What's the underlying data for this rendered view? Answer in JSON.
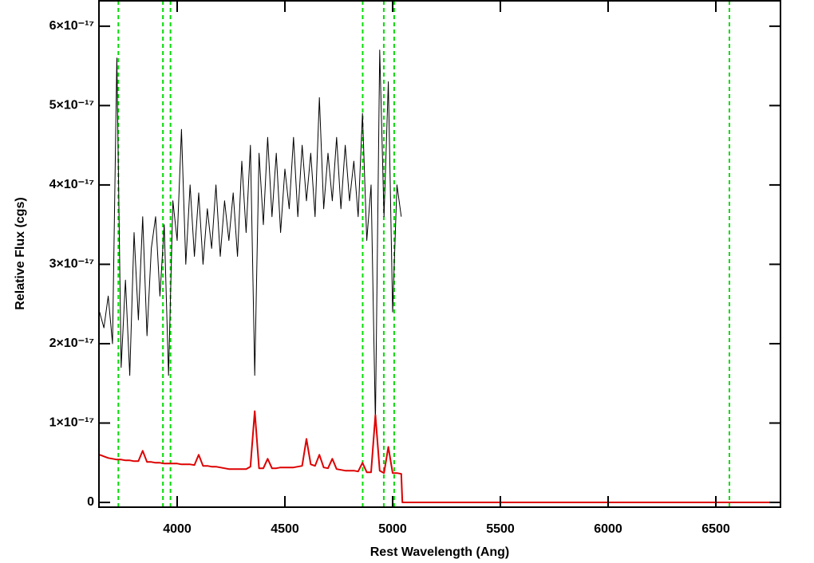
{
  "chart_data": {
    "type": "line",
    "x_label": "Rest Wavelength (Ang)",
    "y_label": "Relative Flux (cgs)",
    "xlim": [
      3637,
      6800
    ],
    "ylim": [
      -6e-19,
      6.32e-17
    ],
    "xticks": [
      4000,
      4500,
      5000,
      5500,
      6000,
      6500
    ],
    "yticks": [
      0,
      {
        "value": 1e-17,
        "label": "1×10⁻¹⁷"
      },
      {
        "value": 2e-17,
        "label": "2×10⁻¹⁷"
      },
      {
        "value": 3e-17,
        "label": "3×10⁻¹⁷"
      },
      {
        "value": 4e-17,
        "label": "4×10⁻¹⁷"
      },
      {
        "value": 5e-17,
        "label": "5×10⁻¹⁷"
      },
      {
        "value": 6e-17,
        "label": "6×10⁻¹⁷"
      }
    ],
    "vlines": [
      3727,
      3934,
      3969,
      4861,
      4959,
      5007,
      6563
    ],
    "vline_color": "#00dd00",
    "x": [
      3640,
      3660,
      3680,
      3700,
      3720,
      3740,
      3760,
      3780,
      3800,
      3820,
      3840,
      3860,
      3880,
      3900,
      3920,
      3940,
      3960,
      3980,
      4000,
      4020,
      4040,
      4060,
      4080,
      4100,
      4120,
      4140,
      4160,
      4180,
      4200,
      4220,
      4240,
      4260,
      4280,
      4300,
      4320,
      4340,
      4360,
      4380,
      4400,
      4420,
      4440,
      4460,
      4480,
      4500,
      4520,
      4540,
      4560,
      4580,
      4600,
      4620,
      4640,
      4660,
      4680,
      4700,
      4720,
      4740,
      4760,
      4780,
      4800,
      4820,
      4840,
      4860,
      4880,
      4900,
      4920,
      4940,
      4960,
      4980,
      5000,
      5020,
      5040,
      5045,
      6800
    ],
    "series": [
      {
        "color": "#000000",
        "values": [
          2.4e-17,
          2.2e-17,
          2.6e-17,
          2e-17,
          5.6e-17,
          1.7e-17,
          2.8e-17,
          1.6e-17,
          3.4e-17,
          2.3e-17,
          3.6e-17,
          2.1e-17,
          3.2e-17,
          3.6e-17,
          2.6e-17,
          3.5e-17,
          1.6e-17,
          3.8e-17,
          3.3e-17,
          4.7e-17,
          3e-17,
          4e-17,
          3.1e-17,
          3.9e-17,
          3e-17,
          3.7e-17,
          3.2e-17,
          4e-17,
          3.1e-17,
          3.8e-17,
          3.3e-17,
          3.9e-17,
          3.1e-17,
          4.3e-17,
          3.4e-17,
          4.5e-17,
          1.6e-17,
          4.4e-17,
          3.5e-17,
          4.6e-17,
          3.6e-17,
          4.4e-17,
          3.4e-17,
          4.2e-17,
          3.7e-17,
          4.6e-17,
          3.6e-17,
          4.5e-17,
          3.8e-17,
          4.4e-17,
          3.6e-17,
          5.1e-17,
          3.7e-17,
          4.4e-17,
          3.8e-17,
          4.6e-17,
          3.7e-17,
          4.5e-17,
          3.8e-17,
          4.3e-17,
          3.6e-17,
          4.9e-17,
          3.3e-17,
          4e-17,
          1e-17,
          5.7e-17,
          3.6e-17,
          5.3e-17,
          2.4e-17,
          4e-17,
          3.6e-17,
          null,
          null
        ],
        "width": 1
      },
      {
        "color": "#dd0000",
        "values": [
          6e-18,
          5.8e-18,
          5.6e-18,
          5.5e-18,
          5.4e-18,
          5.4e-18,
          5.3e-18,
          5.3e-18,
          5.2e-18,
          5.2e-18,
          6.5e-18,
          5.1e-18,
          5.1e-18,
          5e-18,
          5e-18,
          4.9e-18,
          4.9e-18,
          4.9e-18,
          4.9e-18,
          4.8e-18,
          4.8e-18,
          4.8e-18,
          4.7e-18,
          6e-18,
          4.6e-18,
          4.6e-18,
          4.5e-18,
          4.5e-18,
          4.4e-18,
          4.3e-18,
          4.2e-18,
          4.2e-18,
          4.2e-18,
          4.2e-18,
          4.2e-18,
          4.5e-18,
          1.15e-17,
          4.3e-18,
          4.3e-18,
          5.5e-18,
          4.3e-18,
          4.3e-18,
          4.4e-18,
          4.4e-18,
          4.4e-18,
          4.4e-18,
          4.5e-18,
          4.6e-18,
          8e-18,
          4.8e-18,
          4.6e-18,
          6e-18,
          4.4e-18,
          4.3e-18,
          5.5e-18,
          4.2e-18,
          4.1e-18,
          4e-18,
          4e-18,
          4e-18,
          3.9e-18,
          5e-18,
          3.8e-18,
          3.8e-18,
          1.1e-17,
          4e-18,
          3.7e-18,
          7e-18,
          3.7e-18,
          3.7e-18,
          3.6e-18,
          0,
          0
        ],
        "width": 2
      }
    ]
  }
}
